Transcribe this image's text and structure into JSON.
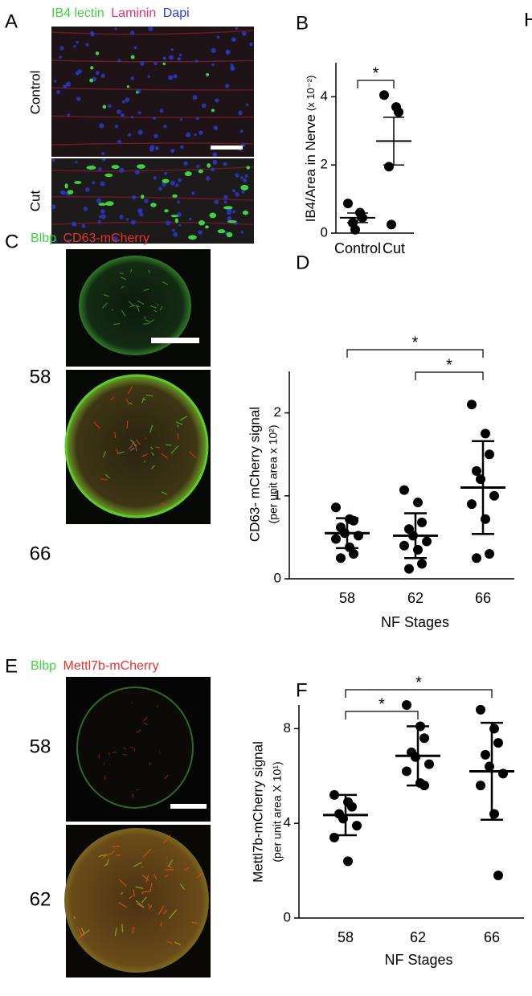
{
  "panels": {
    "A": "A",
    "B": "B",
    "C": "C",
    "D": "D",
    "E": "E",
    "F": "F",
    "H": "H"
  },
  "images": {
    "A": {
      "stains": [
        "IB4 lectin",
        "Laminin",
        "Dapi"
      ],
      "rows": [
        "Control",
        "Cut"
      ]
    },
    "C": {
      "stains": [
        "Blbp",
        "CD63-mCherry"
      ],
      "rows": [
        "58",
        "66"
      ]
    },
    "E": {
      "stains": [
        "Blbp",
        "Mettl7b-mCherry"
      ],
      "rows": [
        "58",
        "62"
      ]
    }
  },
  "chart_data": [
    {
      "type": "dot",
      "ylabel": "IB4/Area in Nerve",
      "ylabel_unit": "(x 10⁻²)",
      "categories": [
        "Control",
        "Cut"
      ],
      "ylim": [
        0,
        5
      ],
      "yticks": [
        0,
        2,
        4
      ],
      "groups": [
        {
          "values": [
            0.87,
            0.6,
            0.45,
            0.3,
            0.1
          ],
          "mean": 0.45,
          "error": 0.14
        },
        {
          "values": [
            4.05,
            3.7,
            3.55,
            1.95,
            0.25
          ],
          "mean": 2.7,
          "error": 0.7
        }
      ],
      "brackets": [
        {
          "from": "Control",
          "to": "Cut",
          "label": "*"
        }
      ]
    },
    {
      "type": "dot",
      "ylabel": "CD63- mCherry signal",
      "ylabel_unit": "(per unit area  x 10²)",
      "xlabel": "NF Stages",
      "categories": [
        "58",
        "62",
        "66"
      ],
      "ylim": [
        0,
        2.5
      ],
      "yticks": [
        0,
        1,
        2
      ],
      "groups": [
        {
          "values": [
            0.86,
            0.72,
            0.7,
            0.62,
            0.55,
            0.52,
            0.48,
            0.38,
            0.3,
            0.25
          ],
          "mean": 0.55,
          "error": 0.18
        },
        {
          "values": [
            1.07,
            0.92,
            0.68,
            0.6,
            0.52,
            0.45,
            0.4,
            0.35,
            0.18,
            0.12
          ],
          "mean": 0.52,
          "error": 0.27
        },
        {
          "values": [
            2.1,
            1.75,
            1.5,
            1.3,
            1.2,
            1.0,
            0.9,
            0.72,
            0.3,
            0.25
          ],
          "mean": 1.1,
          "error": 0.56
        }
      ],
      "brackets": [
        {
          "from": "58",
          "to": "66",
          "label": "*"
        },
        {
          "from": "62",
          "to": "66",
          "label": "*"
        }
      ]
    },
    {
      "type": "dot",
      "ylabel": "Mettl7b-mCherry signal",
      "ylabel_unit": "(per unit area X 10¹)",
      "xlabel": "NF Stages",
      "categories": [
        "58",
        "62",
        "66"
      ],
      "ylim": [
        0,
        9
      ],
      "yticks": [
        0,
        4,
        8
      ],
      "groups": [
        {
          "values": [
            5.2,
            4.9,
            4.7,
            4.4,
            4.2,
            3.9,
            3.4,
            2.4
          ],
          "mean": 4.35,
          "error": 0.85
        },
        {
          "values": [
            9.0,
            8.1,
            7.6,
            7.0,
            6.8,
            6.5,
            6.2,
            5.7,
            5.6
          ],
          "mean": 6.85,
          "error": 1.25
        },
        {
          "values": [
            8.8,
            8.0,
            7.4,
            6.9,
            6.4,
            6.1,
            5.6,
            4.4,
            1.8
          ],
          "mean": 6.2,
          "error": 2.05
        }
      ],
      "brackets": [
        {
          "from": "58",
          "to": "66",
          "label": "*"
        },
        {
          "from": "58",
          "to": "62",
          "label": "*"
        }
      ]
    }
  ]
}
